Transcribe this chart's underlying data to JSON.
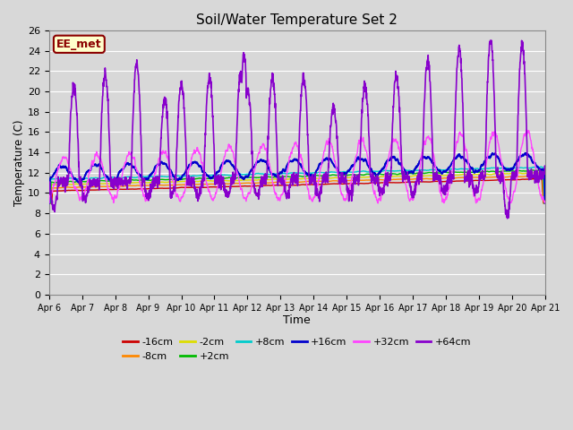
{
  "title": "Soil/Water Temperature Set 2",
  "xlabel": "Time",
  "ylabel": "Temperature (C)",
  "ylim": [
    0,
    26
  ],
  "yticks": [
    0,
    2,
    4,
    6,
    8,
    10,
    12,
    14,
    16,
    18,
    20,
    22,
    24,
    26
  ],
  "background_color": "#d8d8d8",
  "plot_bg_color": "#d8d8d8",
  "grid_color": "#ffffff",
  "annotation_text": "EE_met",
  "annotation_box_color": "#ffffcc",
  "annotation_border_color": "#8b0000",
  "series": {
    "-16cm": {
      "color": "#cc0000",
      "linewidth": 1.0
    },
    "-8cm": {
      "color": "#ff8800",
      "linewidth": 1.0
    },
    "-2cm": {
      "color": "#dddd00",
      "linewidth": 1.0
    },
    "+2cm": {
      "color": "#00bb00",
      "linewidth": 1.0
    },
    "+8cm": {
      "color": "#00cccc",
      "linewidth": 1.0
    },
    "+16cm": {
      "color": "#0000cc",
      "linewidth": 1.5
    },
    "+32cm": {
      "color": "#ff44ff",
      "linewidth": 1.0
    },
    "+64cm": {
      "color": "#8800cc",
      "linewidth": 1.2
    }
  },
  "legend_order": [
    "-16cm",
    "-8cm",
    "-2cm",
    "+2cm",
    "+8cm",
    "+16cm",
    "+32cm",
    "+64cm"
  ],
  "xtick_labels": [
    "Apr 6",
    "Apr 7",
    "Apr 8",
    "Apr 9",
    "Apr 10",
    "Apr 11",
    "Apr 12",
    "Apr 13",
    "Apr 14",
    "Apr 15",
    "Apr 16",
    "Apr 17",
    "Apr 18",
    "Apr 19",
    "Apr 20",
    "Apr 21"
  ],
  "num_days": 15
}
